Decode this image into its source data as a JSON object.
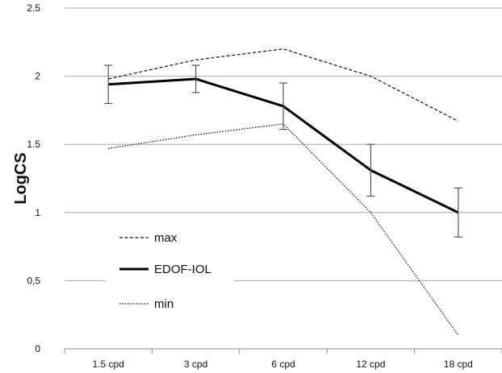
{
  "chart_data": {
    "type": "line",
    "title": "",
    "xlabel": "",
    "ylabel": "LogCS",
    "categories": [
      "1.5 cpd",
      "3 cpd",
      "6 cpd",
      "12 cpd",
      "18 cpd"
    ],
    "ylim": [
      0,
      2.5
    ],
    "yticks": [
      {
        "value": 0,
        "label": "0"
      },
      {
        "value": 0.5,
        "label": "0,5"
      },
      {
        "value": 1,
        "label": "1"
      },
      {
        "value": 1.5,
        "label": "1.5"
      },
      {
        "value": 2,
        "label": "2"
      },
      {
        "value": 2.5,
        "label": "2.5"
      }
    ],
    "grid": true,
    "legend_position": "lower-left",
    "series": [
      {
        "name": "max",
        "style": "dashed",
        "color": "#111111",
        "values": [
          1.98,
          2.12,
          2.2,
          2.0,
          1.67
        ]
      },
      {
        "name": "EDOF-IOL",
        "style": "solid",
        "color": "#000000",
        "values": [
          1.94,
          1.98,
          1.78,
          1.31,
          1.0
        ],
        "error_bars": [
          [
            1.8,
            2.08
          ],
          [
            1.88,
            2.08
          ],
          [
            1.61,
            1.95
          ],
          [
            1.12,
            1.5
          ],
          [
            0.82,
            1.18
          ]
        ]
      },
      {
        "name": "min",
        "style": "dotted",
        "color": "#111111",
        "values": [
          1.47,
          1.57,
          1.65,
          1.0,
          0.1
        ]
      }
    ]
  }
}
